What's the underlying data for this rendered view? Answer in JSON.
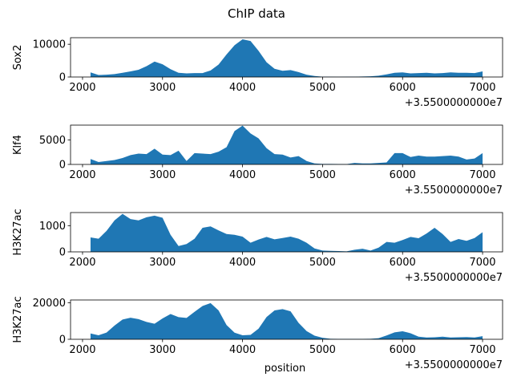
{
  "figure": {
    "title": "ChIP data"
  },
  "colors": {
    "fill": "#1f77b4",
    "axis": "#000000"
  },
  "chart_data": [
    {
      "type": "area",
      "ylabel": "Sox2",
      "xlabel": "",
      "offset_label": "+3.5500000000e7",
      "xlim": [
        1850,
        7250
      ],
      "ylim": [
        0,
        12000
      ],
      "xticks": [
        2000,
        3000,
        4000,
        5000,
        6000,
        7000
      ],
      "yticks": [
        0,
        10000
      ],
      "x": [
        2100,
        2200,
        2300,
        2400,
        2500,
        2600,
        2700,
        2800,
        2900,
        3000,
        3100,
        3200,
        3300,
        3400,
        3500,
        3600,
        3700,
        3800,
        3900,
        4000,
        4100,
        4200,
        4300,
        4400,
        4500,
        4600,
        4700,
        4800,
        4900,
        5000,
        5100,
        5200,
        5300,
        5400,
        5500,
        5600,
        5700,
        5800,
        5900,
        6000,
        6100,
        6200,
        6300,
        6400,
        6500,
        6600,
        6700,
        6800,
        6900,
        7000
      ],
      "y": [
        1400,
        600,
        700,
        900,
        1300,
        1700,
        2200,
        3300,
        4700,
        3900,
        2400,
        1300,
        1100,
        1200,
        1200,
        2000,
        3800,
        6900,
        9700,
        11500,
        11000,
        8000,
        4500,
        2500,
        1900,
        2100,
        1500,
        700,
        300,
        100,
        80,
        60,
        80,
        100,
        150,
        200,
        400,
        800,
        1300,
        1400,
        1100,
        1200,
        1300,
        1100,
        1200,
        1400,
        1300,
        1300,
        1200,
        1700
      ]
    },
    {
      "type": "area",
      "ylabel": "Klf4",
      "xlabel": "",
      "offset_label": "+3.5500000000e7",
      "xlim": [
        1850,
        7250
      ],
      "ylim": [
        0,
        8000
      ],
      "xticks": [
        2000,
        3000,
        4000,
        5000,
        6000,
        7000
      ],
      "yticks": [
        0,
        5000
      ],
      "x": [
        2100,
        2200,
        2300,
        2400,
        2500,
        2600,
        2700,
        2800,
        2900,
        3000,
        3100,
        3200,
        3300,
        3400,
        3500,
        3600,
        3700,
        3800,
        3900,
        4000,
        4100,
        4200,
        4300,
        4400,
        4500,
        4600,
        4700,
        4800,
        4900,
        5000,
        5100,
        5200,
        5300,
        5400,
        5500,
        5600,
        5700,
        5800,
        5900,
        6000,
        6100,
        6200,
        6300,
        6400,
        6500,
        6600,
        6700,
        6800,
        6900,
        7000
      ],
      "y": [
        1100,
        500,
        700,
        900,
        1300,
        1900,
        2200,
        2100,
        3200,
        2000,
        1900,
        2800,
        700,
        2300,
        2200,
        2100,
        2600,
        3500,
        6800,
        7900,
        6300,
        5300,
        3300,
        2100,
        2000,
        1400,
        1700,
        700,
        200,
        100,
        100,
        80,
        70,
        300,
        200,
        200,
        300,
        400,
        2300,
        2300,
        1500,
        1800,
        1600,
        1600,
        1700,
        1800,
        1600,
        1000,
        1200,
        2300
      ]
    },
    {
      "type": "area",
      "ylabel": "H3K27ac",
      "xlabel": "",
      "offset_label": "+3.5500000000e7",
      "xlim": [
        1850,
        7250
      ],
      "ylim": [
        0,
        1500
      ],
      "xticks": [
        2000,
        3000,
        4000,
        5000,
        6000,
        7000
      ],
      "yticks": [
        0,
        1000
      ],
      "x": [
        2100,
        2200,
        2300,
        2400,
        2500,
        2600,
        2700,
        2800,
        2900,
        3000,
        3100,
        3200,
        3300,
        3400,
        3500,
        3600,
        3700,
        3800,
        3900,
        4000,
        4100,
        4200,
        4300,
        4400,
        4500,
        4600,
        4700,
        4800,
        4900,
        5000,
        5100,
        5200,
        5300,
        5400,
        5500,
        5600,
        5700,
        5800,
        5900,
        6000,
        6100,
        6200,
        6300,
        6400,
        6500,
        6600,
        6700,
        6800,
        6900,
        7000
      ],
      "y": [
        550,
        500,
        800,
        1200,
        1450,
        1250,
        1200,
        1320,
        1380,
        1300,
        650,
        220,
        300,
        500,
        920,
        970,
        820,
        680,
        650,
        580,
        350,
        470,
        570,
        480,
        530,
        580,
        500,
        350,
        130,
        50,
        40,
        30,
        20,
        80,
        120,
        50,
        160,
        380,
        350,
        450,
        570,
        520,
        700,
        920,
        680,
        380,
        490,
        420,
        530,
        750
      ]
    },
    {
      "type": "area",
      "ylabel": "H3K27ac",
      "xlabel": "position",
      "offset_label": "+3.5500000000e7",
      "xlim": [
        1850,
        7250
      ],
      "ylim": [
        0,
        21500
      ],
      "xticks": [
        2000,
        3000,
        4000,
        5000,
        6000,
        7000
      ],
      "yticks": [
        0,
        20000
      ],
      "x": [
        2100,
        2200,
        2300,
        2400,
        2500,
        2600,
        2700,
        2800,
        2900,
        3000,
        3100,
        3200,
        3300,
        3400,
        3500,
        3600,
        3700,
        3800,
        3900,
        4000,
        4100,
        4200,
        4300,
        4400,
        4500,
        4600,
        4700,
        4800,
        4900,
        5000,
        5100,
        5200,
        5300,
        5400,
        5500,
        5600,
        5700,
        5800,
        5900,
        6000,
        6100,
        6200,
        6300,
        6400,
        6500,
        6600,
        6700,
        6800,
        6900,
        7000
      ],
      "y": [
        3200,
        2200,
        3700,
        7500,
        10800,
        11800,
        11000,
        9500,
        8500,
        11400,
        13800,
        12100,
        11700,
        15000,
        18200,
        19800,
        15800,
        7800,
        3600,
        2200,
        2400,
        5800,
        12200,
        15800,
        16500,
        15300,
        9000,
        4500,
        2000,
        800,
        300,
        200,
        200,
        200,
        200,
        300,
        600,
        2100,
        3800,
        4400,
        3300,
        1400,
        1000,
        1100,
        1400,
        1000,
        1100,
        1200,
        1000,
        1700
      ]
    }
  ]
}
